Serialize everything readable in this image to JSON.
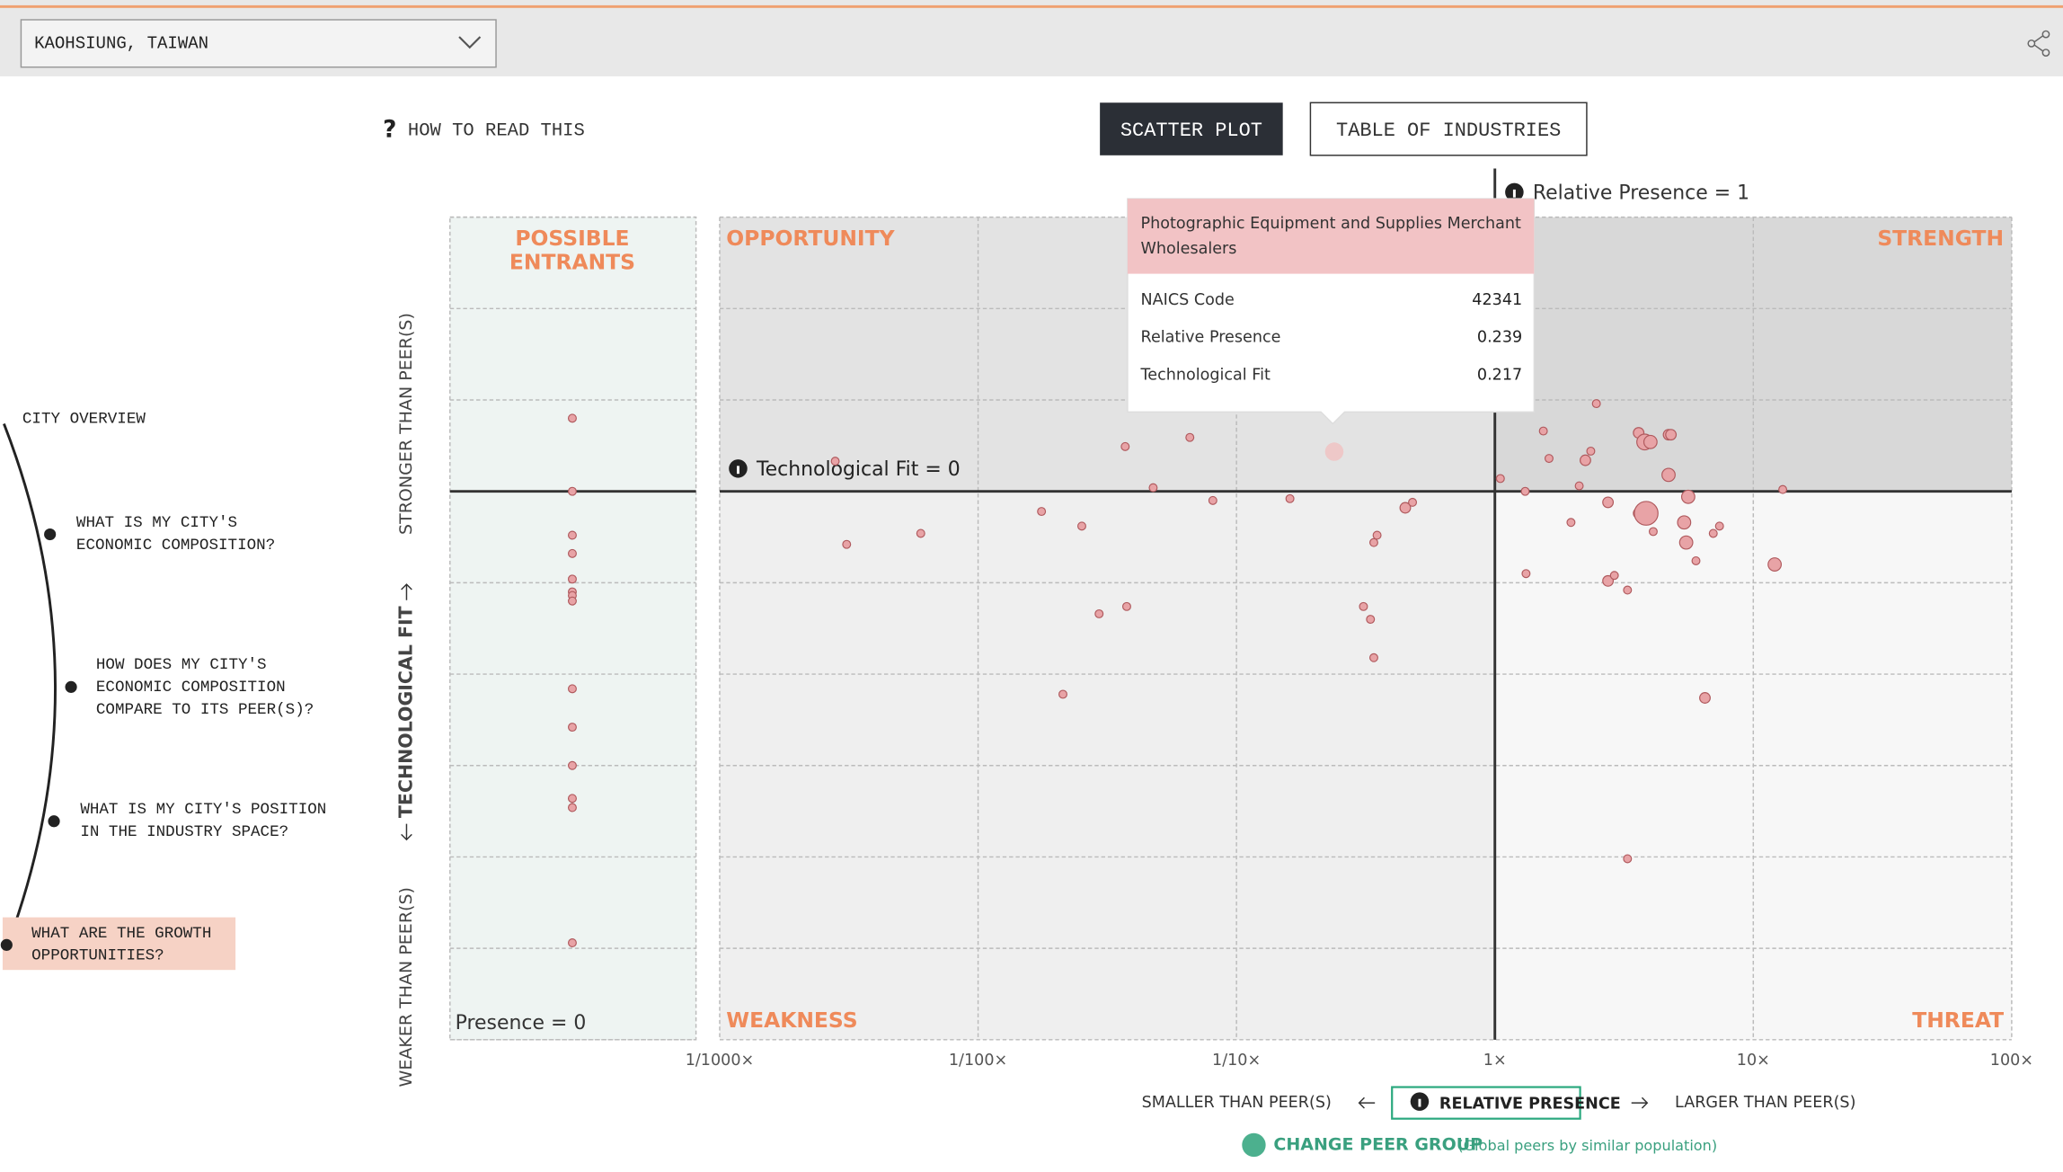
{
  "ui": {
    "location": "KAOHSIUNG, TAIWAN",
    "help_mark": "?",
    "help": "HOW TO READ THIS",
    "tabs": [
      "SCATTER PLOT",
      "TABLE OF INDUSTRIES"
    ],
    "nav": [
      [
        "CITY OVERVIEW"
      ],
      [
        "WHAT IS MY CITY'S",
        "ECONOMIC COMPOSITION?"
      ],
      [
        "HOW DOES MY CITY'S",
        "ECONOMIC COMPOSITION",
        "COMPARE TO ITS PEER(S)?"
      ],
      [
        "WHAT IS MY CITY'S POSITION",
        "IN THE INDUSTRY SPACE?"
      ],
      [
        "WHAT ARE THE GROWTH",
        "OPPORTUNITIES?"
      ]
    ],
    "change_peer": "CHANGE PEER GROUP",
    "peer_note": "(Global peers by similar population)"
  },
  "chart_data": {
    "type": "scatter",
    "quadrants": {
      "entrants": [
        "POSSIBLE",
        "ENTRANTS"
      ],
      "opportunity": "OPPORTUNITY",
      "strength": "STRENGTH",
      "weakness": "WEAKNESS",
      "threat": "THREAT"
    },
    "annotations": {
      "presence_one": "Relative Presence = 1",
      "fit_zero": "Technological Fit = 0",
      "presence_zero": "Presence = 0"
    },
    "y_label": "TECHNOLOGICAL FIT",
    "y_top": "STRONGER THAN PEER(S)",
    "y_bottom": "WEAKER THAN PEER(S)",
    "x_label": "RELATIVE PRESENCE",
    "x_left": "SMALLER THAN PEER(S)",
    "x_right": "LARGER THAN PEER(S)",
    "xscale": "log",
    "xlim": [
      0.001,
      100
    ],
    "xticks": [
      {
        "value": 0.001,
        "label": "1/1000×"
      },
      {
        "value": 0.01,
        "label": "1/100×"
      },
      {
        "value": 0.1,
        "label": "1/10×"
      },
      {
        "value": 1,
        "label": "1×"
      },
      {
        "value": 10,
        "label": "10×"
      },
      {
        "value": 100,
        "label": "100×"
      }
    ],
    "ylim": [
      -3,
      1.5
    ],
    "yticks": [
      -3,
      -2.5,
      -2,
      -1.5,
      -1,
      -0.5,
      0,
      0.5,
      1,
      1.5
    ],
    "color": "#e8a3a6",
    "series": [
      {
        "x": [
          0.0028,
          0.0031,
          0.006,
          0.0176,
          0.0252,
          0.0371,
          0.0476,
          0.066,
          0.081,
          0.0294,
          0.0376,
          0.0213,
          0.161,
          0.239,
          0.31,
          0.33,
          0.34,
          0.34,
          0.35,
          0.45,
          0.48,
          1.05,
          1.31,
          1.54,
          1.62,
          1.32,
          2.12,
          2.24,
          2.35,
          2.47,
          1.97,
          2.74,
          2.74,
          2.9,
          3.26,
          3.6,
          3.8,
          4.0,
          4.1,
          3.6,
          3.85,
          4.7,
          4.8,
          4.7,
          5.6,
          5.4,
          5.5,
          6.0,
          7.0,
          7.4,
          6.5,
          3.26,
          12.1,
          13.0
        ],
        "values": [
          0.165,
          -0.29,
          -0.23,
          -0.11,
          -0.19,
          0.245,
          0.02,
          0.295,
          -0.05,
          -0.67,
          -0.63,
          -1.11,
          -0.04,
          0.217,
          -0.63,
          -0.7,
          -0.91,
          -0.28,
          -0.24,
          -0.09,
          -0.06,
          0.07,
          0.0,
          0.33,
          0.18,
          -0.45,
          0.03,
          0.17,
          0.22,
          0.48,
          -0.17,
          -0.06,
          -0.49,
          -0.46,
          -0.54,
          0.32,
          0.27,
          0.27,
          -0.22,
          -0.12,
          -0.12,
          0.31,
          0.31,
          0.09,
          -0.03,
          -0.17,
          -0.28,
          -0.38,
          -0.23,
          -0.19,
          -1.13,
          -2.01,
          -0.4,
          0.01
        ],
        "sizes": [
          3,
          3,
          3,
          3,
          3,
          3,
          3,
          3,
          3,
          3,
          3,
          3,
          3,
          7,
          3,
          3,
          3,
          3,
          3,
          4,
          3,
          3,
          3,
          3,
          3,
          3,
          3,
          4,
          3,
          3,
          3,
          4,
          4,
          3,
          3,
          4,
          6,
          5,
          3,
          4,
          9,
          4,
          4,
          5,
          5,
          5,
          5,
          3,
          3,
          3,
          4,
          3,
          5,
          3
        ]
      },
      {
        "values": [
          0.4,
          0,
          -0.24,
          -0.34,
          -0.48,
          -0.55,
          -0.57,
          -0.6,
          -1.08,
          -1.29,
          -1.5,
          -1.68,
          -1.73,
          -2.47
        ],
        "sizes": [
          3,
          3,
          3,
          3,
          3,
          3,
          3,
          3,
          3,
          3,
          3,
          3,
          3,
          3
        ]
      }
    ],
    "tooltip": {
      "point": 13,
      "title": "Photographic Equipment and Supplies Merchant Wholesalers",
      "naics_label": "NAICS Code",
      "naics": 42341,
      "x_name": "Relative Presence",
      "y_name": "Technological Fit"
    }
  }
}
